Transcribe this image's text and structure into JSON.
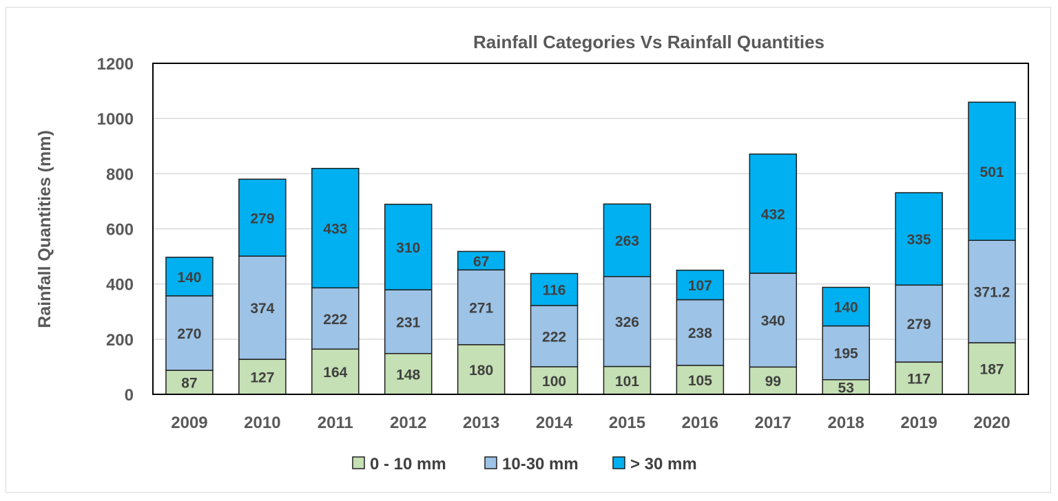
{
  "chart_data": {
    "type": "bar",
    "stacked": true,
    "title": "Rainfall Categories Vs Rainfall Quantities",
    "xlabel": "",
    "ylabel": "Rainfall Quantities (mm)",
    "ylim": [
      0,
      1200
    ],
    "yticks": [
      "0",
      "200",
      "400",
      "600",
      "800",
      "1000",
      "1200"
    ],
    "grid": true,
    "legend_position": "bottom",
    "categories": [
      "2009",
      "2010",
      "2011",
      "2012",
      "2013",
      "2014",
      "2015",
      "2016",
      "2017",
      "2018",
      "2019",
      "2020"
    ],
    "series": [
      {
        "name": "0 - 10 mm",
        "color": "#c5e0b4",
        "values": [
          87,
          127,
          164,
          148,
          180,
          100,
          101,
          105,
          99,
          53,
          117,
          187
        ],
        "labels": [
          "87",
          "127",
          "164",
          "148",
          "180",
          "100",
          "101",
          "105",
          "99",
          "53",
          "117",
          "187"
        ]
      },
      {
        "name": "10-30 mm",
        "color": "#9dc3e6",
        "values": [
          270,
          374,
          222,
          231,
          271,
          222,
          326,
          238,
          340,
          195,
          279,
          371.2
        ],
        "labels": [
          "270",
          "374",
          "222",
          "231",
          "271",
          "222",
          "326",
          "238",
          "340",
          "195",
          "279",
          "371.2"
        ]
      },
      {
        "name": "> 30 mm",
        "color": "#00b0f0",
        "values": [
          140,
          279,
          433,
          310,
          67,
          116,
          263,
          107,
          432,
          140,
          335,
          501
        ],
        "labels": [
          "140",
          "279",
          "433",
          "310",
          "67",
          "116",
          "263",
          "107",
          "432",
          "140",
          "335",
          "501"
        ]
      }
    ]
  }
}
